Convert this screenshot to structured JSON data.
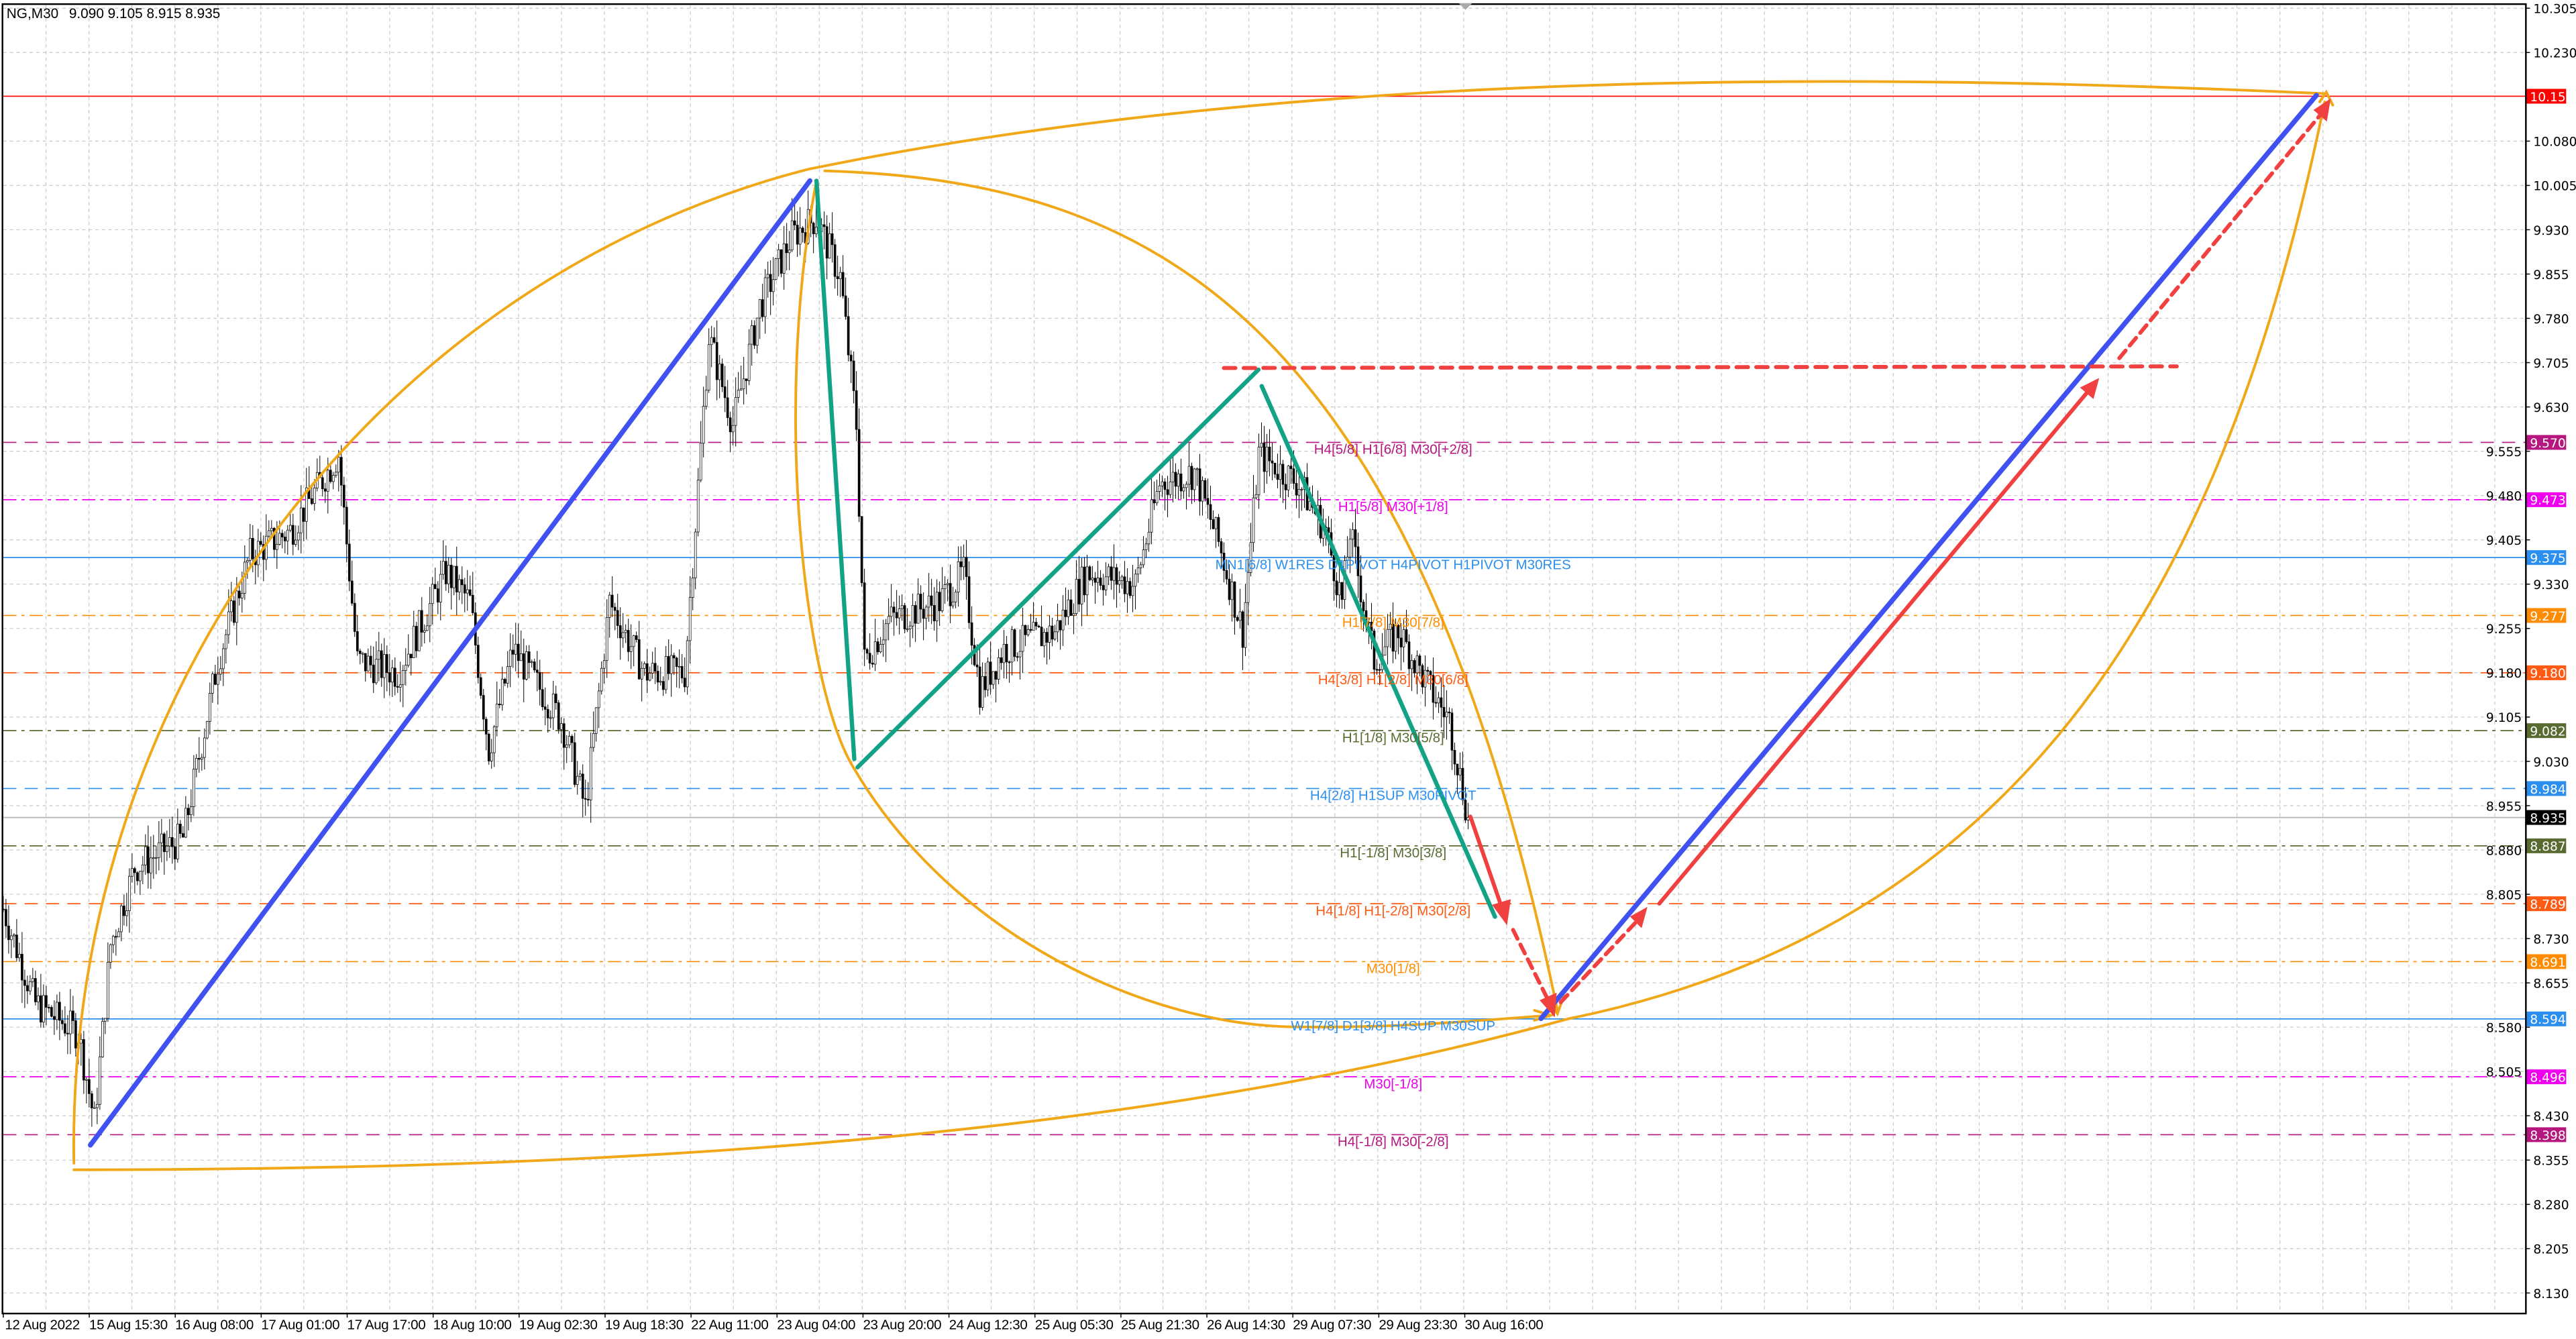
{
  "header": {
    "symbol": "NG,M30",
    "ohlc": "9.090 9.105 8.915 8.935"
  },
  "colors": {
    "background": "#ffffff",
    "candle": "#000000",
    "grid": "#c8c8c8",
    "uptrend": "#3f51f0",
    "wave": "#12a386",
    "projection": "#f04040",
    "arc": "#f0a818"
  },
  "chart_data": {
    "type": "candlestick",
    "symbol": "NG",
    "timeframe": "M30",
    "ylim": [
      8.13,
      10.305
    ],
    "grid": true,
    "y_ticks": [
      "10.305",
      "10.230",
      "10.080",
      "10.005",
      "9.930",
      "9.855",
      "9.780",
      "9.705",
      "9.630",
      "9.555",
      "9.480",
      "9.405",
      "9.330",
      "9.255",
      "9.180",
      "9.105",
      "9.030",
      "8.955",
      "8.880",
      "8.805",
      "8.730",
      "8.655",
      "8.580",
      "8.505",
      "8.430",
      "8.355",
      "8.280",
      "8.205",
      "8.130"
    ],
    "x_ticks": [
      "12 Aug 2022",
      "15 Aug 15:30",
      "16 Aug 08:00",
      "17 Aug 01:00",
      "17 Aug 17:00",
      "18 Aug 10:00",
      "19 Aug 02:30",
      "19 Aug 18:30",
      "22 Aug 11:00",
      "23 Aug 04:00",
      "23 Aug 20:00",
      "24 Aug 12:30",
      "25 Aug 05:30",
      "25 Aug 21:30",
      "26 Aug 14:30",
      "29 Aug 07:30",
      "29 Aug 23:30",
      "30 Aug 16:00"
    ],
    "price_path_bar_price": [
      [
        0,
        8.78
      ],
      [
        12,
        8.62
      ],
      [
        28,
        8.57
      ],
      [
        34,
        8.42
      ],
      [
        40,
        8.72
      ],
      [
        49,
        8.85
      ],
      [
        67,
        8.9
      ],
      [
        80,
        9.2
      ],
      [
        92,
        9.38
      ],
      [
        107,
        9.42
      ],
      [
        125,
        9.55
      ],
      [
        132,
        9.2
      ],
      [
        147,
        9.18
      ],
      [
        165,
        9.35
      ],
      [
        174,
        9.3
      ],
      [
        181,
        9.05
      ],
      [
        190,
        9.22
      ],
      [
        208,
        9.1
      ],
      [
        217,
        8.95
      ],
      [
        226,
        9.3
      ],
      [
        239,
        9.18
      ],
      [
        254,
        9.18
      ],
      [
        263,
        9.75
      ],
      [
        272,
        9.6
      ],
      [
        282,
        9.8
      ],
      [
        294,
        9.92
      ],
      [
        303,
        9.95
      ],
      [
        312,
        9.85
      ],
      [
        318,
        9.6
      ],
      [
        321,
        9.2
      ],
      [
        330,
        9.27
      ],
      [
        349,
        9.3
      ],
      [
        358,
        9.35
      ],
      [
        364,
        9.15
      ],
      [
        373,
        9.22
      ],
      [
        392,
        9.25
      ],
      [
        404,
        9.35
      ],
      [
        422,
        9.33
      ],
      [
        431,
        9.5
      ],
      [
        444,
        9.52
      ],
      [
        453,
        9.4
      ],
      [
        462,
        9.25
      ],
      [
        468,
        9.55
      ],
      [
        483,
        9.5
      ],
      [
        493,
        9.42
      ],
      [
        499,
        9.3
      ],
      [
        502,
        9.42
      ],
      [
        511,
        9.2
      ],
      [
        520,
        9.25
      ],
      [
        532,
        9.15
      ],
      [
        539,
        9.1
      ],
      [
        546,
        8.935
      ]
    ],
    "current_price": "8.935",
    "levels": [
      {
        "price": "10.156",
        "label": "",
        "color": "#ff0000",
        "style": "solid"
      },
      {
        "price": "9.570",
        "label": "H4[5/8] H1[6/8] M30[+2/8]",
        "color": "#b5177f",
        "style": "dash"
      },
      {
        "price": "9.473",
        "label": "H1[5/8] M30[+1/8]",
        "color": "#ee00ee",
        "style": "dashdot"
      },
      {
        "price": "9.375",
        "label": "MN1[6/8] W1RES D1PIVOT H4PIVOT H1PIVOT M30RES",
        "color": "#2b8ff0",
        "style": "solid"
      },
      {
        "price": "9.277",
        "label": "H1[7/8] M30[7/8]",
        "color": "#ff8c00",
        "style": "dashdot"
      },
      {
        "price": "9.180",
        "label": "H4[3/8] H1[2/8] M30[6/8]",
        "color": "#ff5a14",
        "style": "dash"
      },
      {
        "price": "9.082",
        "label": "H1[1/8] M30[5/8]",
        "color": "#5a6b32",
        "style": "dashdot"
      },
      {
        "price": "8.984",
        "label": "H4[2/8] H1SUP M30PIVOT",
        "color": "#2b8ff0",
        "style": "dash"
      },
      {
        "price": "8.935",
        "label": "",
        "color": "#000000",
        "style": "current"
      },
      {
        "price": "8.887",
        "label": "H1[-1/8] M30[3/8]",
        "color": "#5a6b32",
        "style": "dashdot"
      },
      {
        "price": "8.789",
        "label": "H4[1/8] H1[-2/8] M30[2/8]",
        "color": "#ff5a14",
        "style": "dash"
      },
      {
        "price": "8.691",
        "label": "M30[1/8]",
        "color": "#ff8c00",
        "style": "dashdot"
      },
      {
        "price": "8.594",
        "label": "W1[7/8] D1[3/8] H4SUP M30SUP",
        "color": "#2b8ff0",
        "style": "solid"
      },
      {
        "price": "8.496",
        "label": "M30[-1/8]",
        "color": "#ee00ee",
        "style": "dashdot"
      },
      {
        "price": "8.398",
        "label": "H4[-1/8] M30[-2/8]",
        "color": "#b5177f",
        "style": "dash"
      }
    ]
  }
}
